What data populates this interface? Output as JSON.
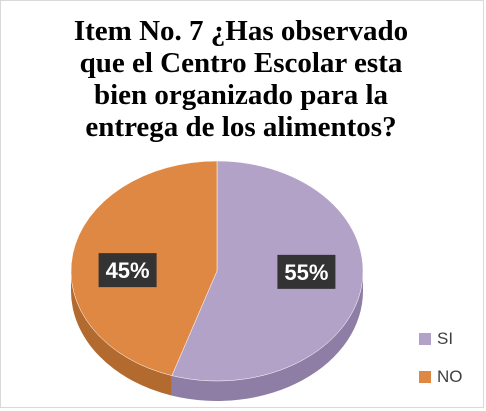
{
  "chart_data": {
    "type": "pie",
    "title": "Item No. 7 ¿Has observado que el Centro Escolar esta bien organizado para la entrega de los alimentos?",
    "title_lines": [
      "Item No. 7 ¿Has observado",
      "que el Centro Escolar esta",
      "bien organizado para la",
      "entrega de los alimentos?"
    ],
    "categories": [
      "SI",
      "NO"
    ],
    "values": [
      55,
      45
    ],
    "data_labels": [
      "55%",
      "45%"
    ],
    "colors": [
      "#b3a2c7",
      "#de8844"
    ],
    "side_colors": [
      "#8e7ea6",
      "#b26a2f"
    ],
    "legend_position": "bottom-right",
    "style": "3d"
  }
}
